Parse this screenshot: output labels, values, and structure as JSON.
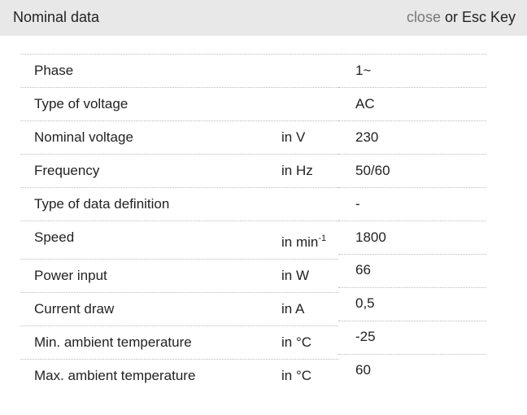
{
  "header": {
    "title": "Nominal data",
    "close_link": "close",
    "close_suffix": " or Esc Key"
  },
  "rows": [
    {
      "label": "Phase",
      "unit": "",
      "value": "1~"
    },
    {
      "label": "Type of voltage",
      "unit": "",
      "value": "AC"
    },
    {
      "label": "Nominal voltage",
      "unit": "in V",
      "value": "230"
    },
    {
      "label": "Frequency",
      "unit": "in Hz",
      "value": "50/60"
    },
    {
      "label": "Type of data definition",
      "unit": "",
      "value": "-"
    },
    {
      "label": "Speed",
      "unit": "in min",
      "unit_sup": "-1",
      "value": "1800"
    },
    {
      "label": "Power input",
      "unit": "in W",
      "value": "66"
    },
    {
      "label": "Current draw",
      "unit": "in A",
      "value": "0,5"
    },
    {
      "label": "Min. ambient temperature",
      "unit": "in °C",
      "value": "-25"
    },
    {
      "label": "Max. ambient temperature",
      "unit": "in °C",
      "value": "60"
    }
  ]
}
